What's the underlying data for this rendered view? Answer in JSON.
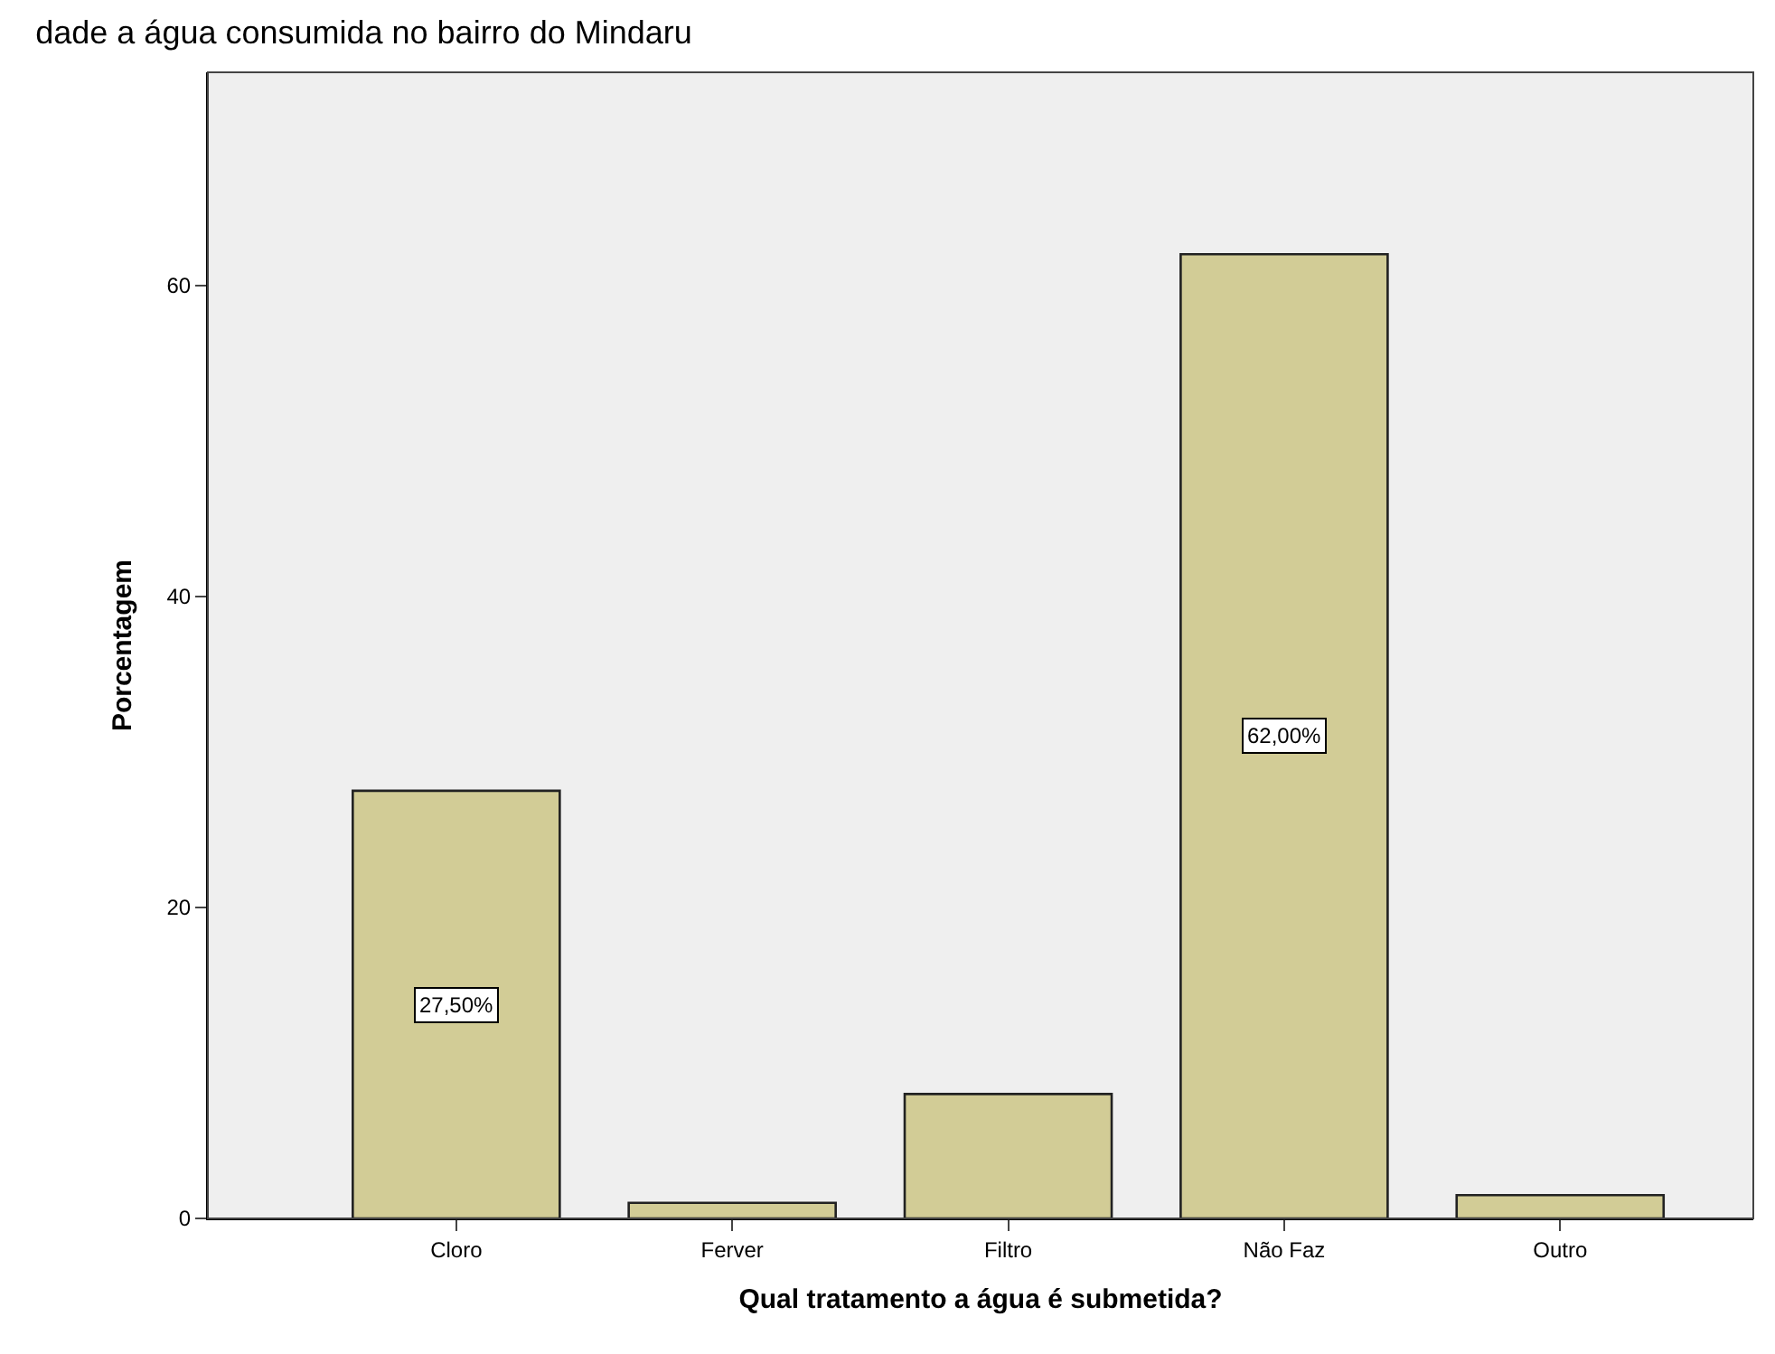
{
  "chart_data": {
    "type": "bar",
    "title": "dade a água consumida no bairro do Mindaru",
    "xlabel": "Qual tratamento a água é submetida?",
    "ylabel": "Porcentagem",
    "categories": [
      "Cloro",
      "Ferver",
      "Filtro",
      "Não Faz",
      "Outro"
    ],
    "values": [
      27.5,
      1.0,
      8.0,
      62.0,
      1.5
    ],
    "value_labels": [
      "27,50%",
      null,
      null,
      "62,00%",
      null
    ],
    "color": "#d2cc96",
    "ylim": [
      0,
      73.7
    ],
    "yticks": [
      0,
      20,
      40,
      60
    ],
    "grid": false
  }
}
